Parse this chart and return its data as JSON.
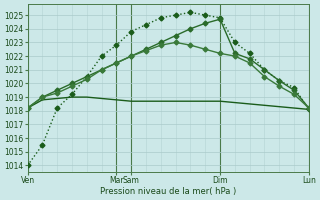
{
  "bg_color": "#cce8e8",
  "grid_color_minor": "#c8dede",
  "grid_color_major": "#aacaca",
  "ylabel_ticks": [
    1014,
    1015,
    1016,
    1017,
    1018,
    1019,
    1020,
    1021,
    1022,
    1023,
    1024,
    1025
  ],
  "ylim": [
    1013.5,
    1025.8
  ],
  "xlabel": "Pression niveau de la mer( hPa )",
  "xtick_labels": [
    "Ven",
    "Mar",
    "Sam",
    "Dim",
    "Lun"
  ],
  "xtick_positions": [
    0,
    6,
    7,
    13,
    19
  ],
  "x_total": 19,
  "vlines_dark": [
    0,
    6,
    13,
    19
  ],
  "vlines_light": [
    1,
    2,
    3,
    4,
    5,
    7,
    8,
    9,
    10,
    11,
    12,
    14,
    15,
    16,
    17,
    18
  ],
  "vline_color_dark": "#4a7a4a",
  "vline_color_light": "#b8d8d8",
  "series": [
    {
      "x": [
        0,
        1,
        2,
        3,
        4,
        5,
        6,
        7,
        8,
        9,
        10,
        11,
        12,
        13,
        14,
        15,
        16,
        17,
        18,
        19
      ],
      "y": [
        1014.0,
        1015.5,
        1018.2,
        1019.2,
        1020.5,
        1022.0,
        1022.8,
        1023.8,
        1024.3,
        1024.8,
        1025.0,
        1025.2,
        1025.0,
        1024.8,
        1023.0,
        1022.2,
        1021.0,
        1020.2,
        1019.7,
        1018.1
      ],
      "marker": "D",
      "ms": 2.5,
      "lw": 1.0,
      "color": "#1a5c1a",
      "ls": ":"
    },
    {
      "x": [
        0,
        1,
        2,
        3,
        4,
        5,
        6,
        7,
        8,
        9,
        10,
        11,
        12,
        13,
        14,
        15,
        16,
        17,
        18,
        19
      ],
      "y": [
        1018.2,
        1019.0,
        1019.5,
        1020.0,
        1020.5,
        1021.0,
        1021.5,
        1022.0,
        1022.5,
        1023.0,
        1023.5,
        1024.0,
        1024.4,
        1024.7,
        1022.2,
        1021.8,
        1021.0,
        1020.2,
        1019.5,
        1018.2
      ],
      "marker": "D",
      "ms": 2.5,
      "lw": 1.0,
      "color": "#2a6b2a",
      "ls": "-"
    },
    {
      "x": [
        0,
        1,
        2,
        3,
        4,
        5,
        6,
        7,
        8,
        9,
        10,
        11,
        12,
        13,
        14,
        15,
        16,
        17,
        18,
        19
      ],
      "y": [
        1018.2,
        1018.8,
        1018.9,
        1019.0,
        1019.0,
        1018.9,
        1018.8,
        1018.7,
        1018.7,
        1018.7,
        1018.7,
        1018.7,
        1018.7,
        1018.7,
        1018.6,
        1018.5,
        1018.4,
        1018.3,
        1018.2,
        1018.1
      ],
      "marker": null,
      "ms": 0,
      "lw": 1.0,
      "color": "#1a5c1a",
      "ls": "-"
    },
    {
      "x": [
        0,
        1,
        2,
        3,
        4,
        5,
        6,
        7,
        8,
        9,
        10,
        11,
        12,
        13,
        14,
        15,
        16,
        17,
        18,
        19
      ],
      "y": [
        1018.2,
        1019.0,
        1019.3,
        1019.8,
        1020.3,
        1021.0,
        1021.5,
        1022.0,
        1022.4,
        1022.8,
        1023.0,
        1022.8,
        1022.5,
        1022.2,
        1022.0,
        1021.5,
        1020.5,
        1019.8,
        1019.2,
        1018.2
      ],
      "marker": "D",
      "ms": 2.5,
      "lw": 1.0,
      "color": "#3a7a3a",
      "ls": "-"
    }
  ]
}
